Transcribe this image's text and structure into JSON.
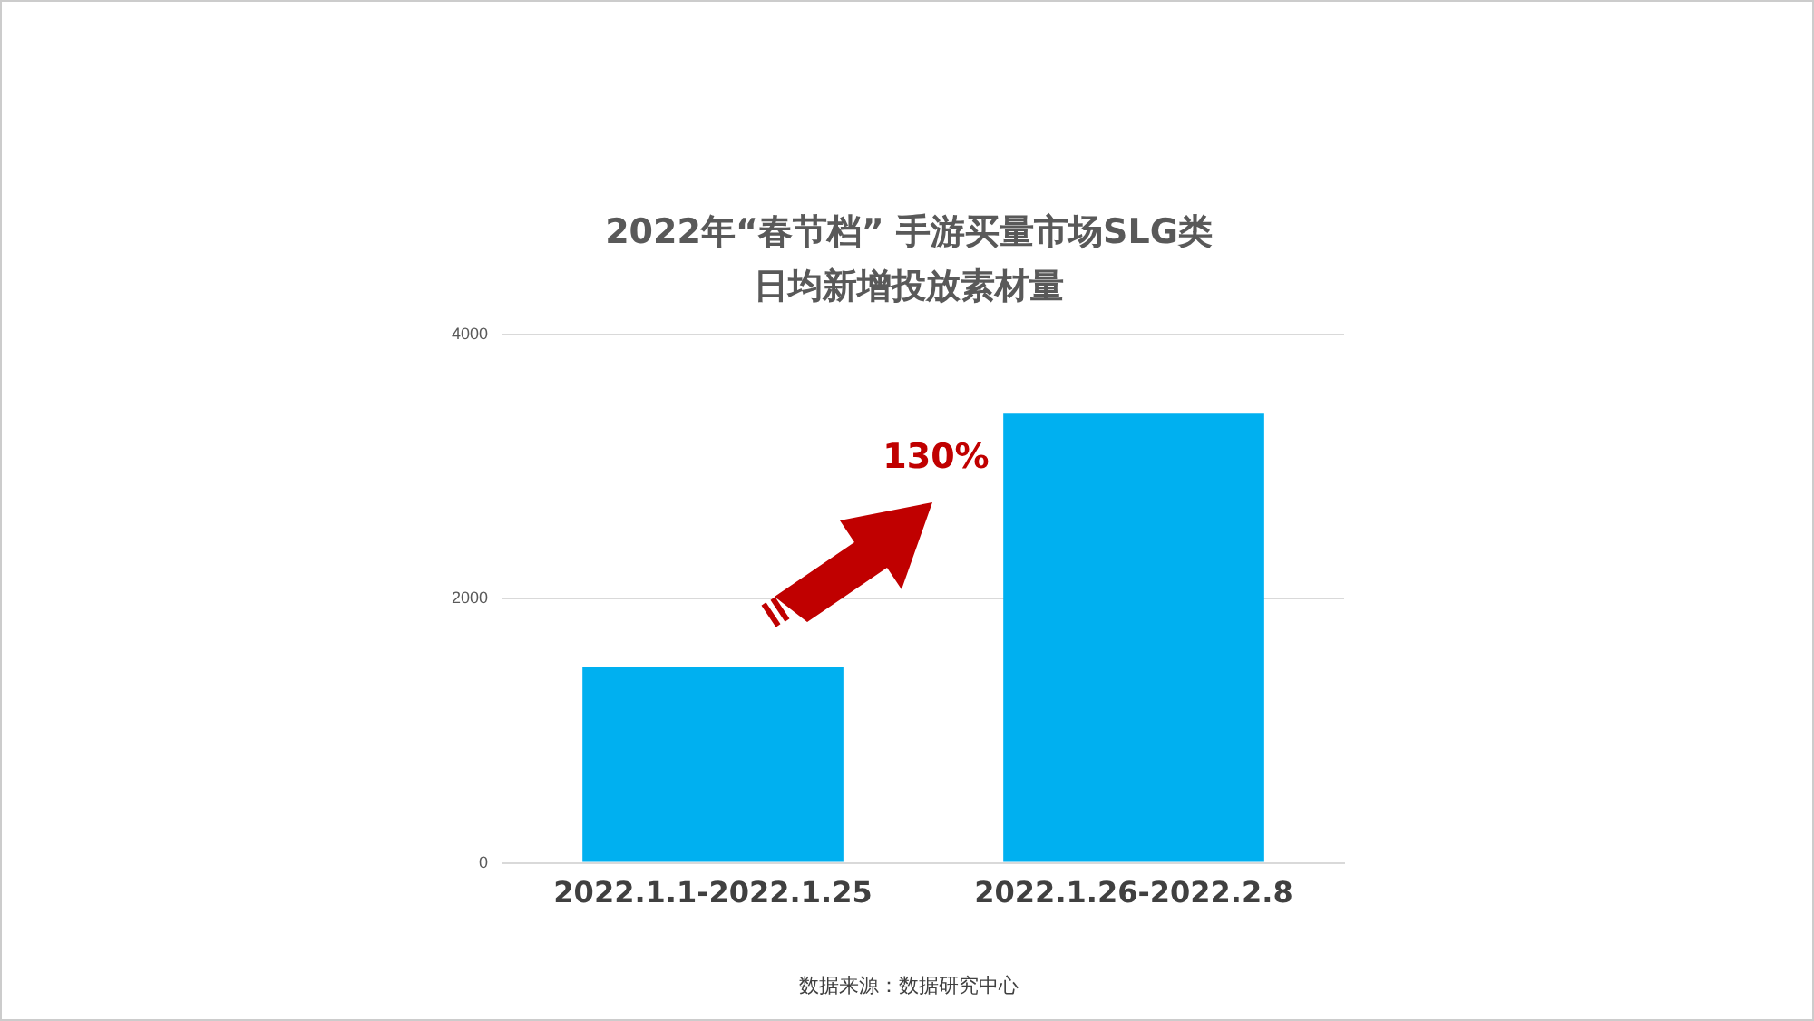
{
  "chart_data": {
    "type": "bar",
    "title": "2022年“春节档” 手游买量市场SLG类日均新增投放素材量",
    "categories": [
      "2022.1.1-2022.1.25",
      "2022.1.26-2022.2.8"
    ],
    "values": [
      1480,
      3400
    ],
    "color": "#00b0f0",
    "ylim": [
      0,
      4000
    ],
    "yticks": [
      0,
      2000,
      4000
    ],
    "grid": "y",
    "annotations": [
      "130%",
      "数据来源：数据研究中心"
    ]
  }
}
